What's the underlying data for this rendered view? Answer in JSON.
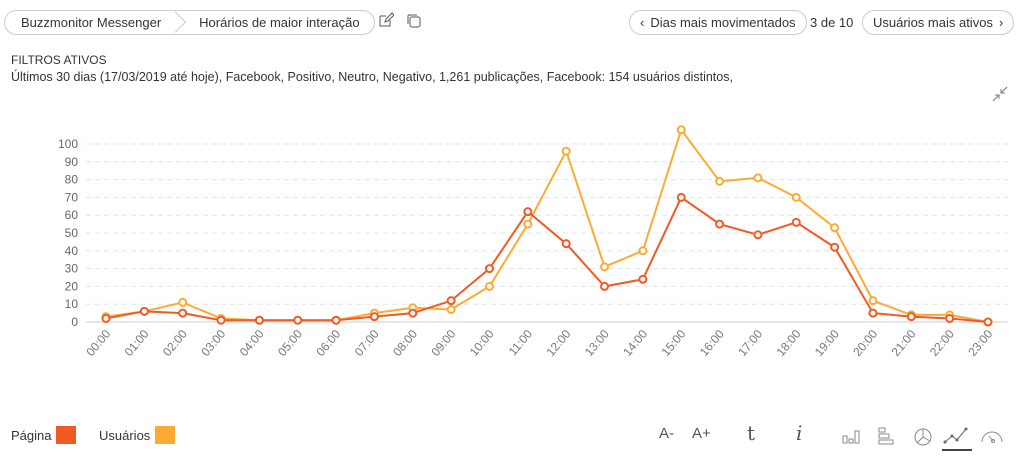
{
  "breadcrumb": {
    "items": [
      "Buzzmonitor Messenger",
      "Horários de maior interação"
    ]
  },
  "nav": {
    "prev_label": "Dias mais movimentados",
    "pager": "3 de 10",
    "next_label": "Usuários mais ativos"
  },
  "filters": {
    "title": "FILTROS ATIVOS",
    "description": "Últimos 30 dias (17/03/2019 até hoje), Facebook, Positivo, Neutro, Negativo, 1,261 publicações, Facebook: 154 usuários distintos,"
  },
  "toolbar": {
    "font_decrease": "A-",
    "font_increase": "A+"
  },
  "chart_data": {
    "type": "line",
    "categories": [
      "00:00",
      "01:00",
      "02:00",
      "03:00",
      "04:00",
      "05:00",
      "06:00",
      "07:00",
      "08:00",
      "09:00",
      "10:00",
      "11:00",
      "12:00",
      "13:00",
      "14:00",
      "15:00",
      "16:00",
      "17:00",
      "18:00",
      "19:00",
      "20:00",
      "21:00",
      "22:00",
      "23:00"
    ],
    "yticks": [
      "0",
      "10",
      "20",
      "30",
      "40",
      "50",
      "60",
      "70",
      "80",
      "90",
      "100"
    ],
    "ylim": [
      0,
      100
    ],
    "grid": true,
    "legend_position": "bottom-left",
    "series": [
      {
        "name": "Página",
        "color": "#f15a24",
        "values": [
          2,
          6,
          5,
          1,
          1,
          1,
          1,
          3,
          5,
          12,
          30,
          62,
          44,
          20,
          24,
          70,
          55,
          49,
          56,
          42,
          5,
          3,
          2,
          0
        ]
      },
      {
        "name": "Usuários",
        "color": "#fbab35",
        "values": [
          3,
          6,
          11,
          2,
          1,
          1,
          1,
          5,
          8,
          7,
          20,
          55,
          96,
          31,
          40,
          108,
          79,
          81,
          70,
          53,
          12,
          4,
          4,
          0
        ]
      }
    ]
  }
}
